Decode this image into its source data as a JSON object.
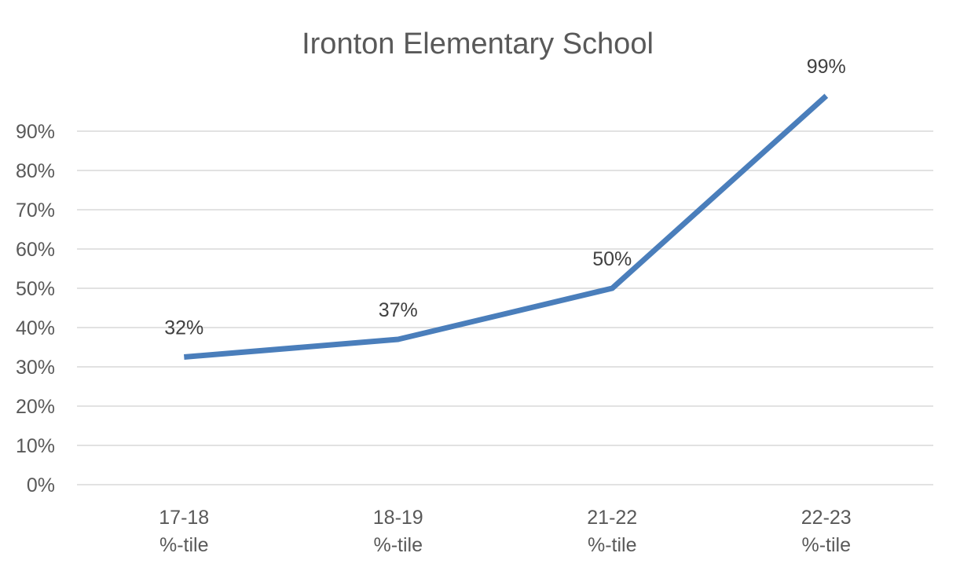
{
  "chart_data": {
    "type": "line",
    "title": "Ironton Elementary School",
    "categories": [
      [
        "17-18",
        "%-tile"
      ],
      [
        "18-19",
        "%-tile"
      ],
      [
        "21-22",
        "%-tile"
      ],
      [
        "22-23",
        "%-tile"
      ]
    ],
    "series": [
      {
        "values": [
          32.5,
          37,
          50,
          99
        ],
        "data_labels": [
          "32%",
          "37%",
          "50%",
          "99%"
        ],
        "color": "#4a7ebb"
      }
    ],
    "y_ticks": [
      "0%",
      "10%",
      "20%",
      "30%",
      "40%",
      "50%",
      "60%",
      "70%",
      "80%",
      "90%"
    ],
    "ylim": [
      0,
      90
    ],
    "grid": true,
    "legend": "none"
  }
}
